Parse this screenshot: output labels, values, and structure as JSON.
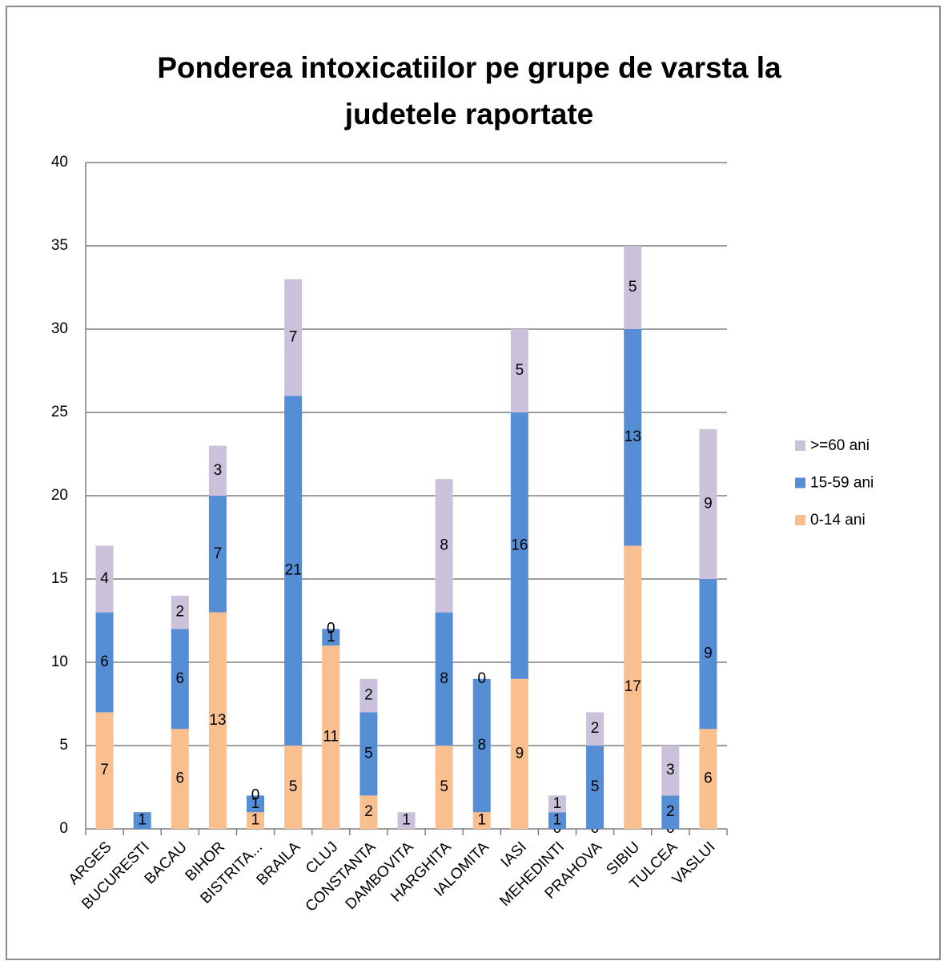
{
  "chart_data": {
    "type": "stacked_bar",
    "title": [
      "Ponderea intoxicatiilor pe grupe de varsta la",
      "judetele raportate"
    ],
    "categories": [
      "ARGES",
      "BUCURESTI",
      "BACAU",
      "BIHOR",
      "BISTRITA...",
      "BRAILA",
      "CLUJ",
      "CONSTANTA",
      "DAMBOVITA",
      "HARGHITA",
      "IALOMITA",
      "IASI",
      "MEHEDINTI",
      "PRAHOVA",
      "SIBIU",
      "TULCEA",
      "VASLUI"
    ],
    "series": [
      {
        "name": "0-14 ani",
        "color": "#f9bf8f",
        "values": [
          7,
          null,
          6,
          13,
          1,
          5,
          11,
          2,
          null,
          5,
          1,
          9,
          0,
          0,
          17,
          0,
          6
        ]
      },
      {
        "name": "15-59 ani",
        "color": "#558ed5",
        "values": [
          6,
          1,
          6,
          7,
          1,
          21,
          1,
          5,
          null,
          8,
          8,
          16,
          1,
          5,
          13,
          2,
          9
        ]
      },
      {
        "name": ">=60 ani",
        "color": "#ccc1da",
        "values": [
          4,
          null,
          2,
          3,
          0,
          7,
          0,
          2,
          1,
          8,
          0,
          5,
          1,
          2,
          5,
          3,
          9
        ]
      }
    ],
    "ylim": [
      0,
      40
    ],
    "yticks": [
      0,
      5,
      10,
      15,
      20,
      25,
      30,
      35,
      40
    ],
    "grid": true,
    "legend": "right"
  }
}
